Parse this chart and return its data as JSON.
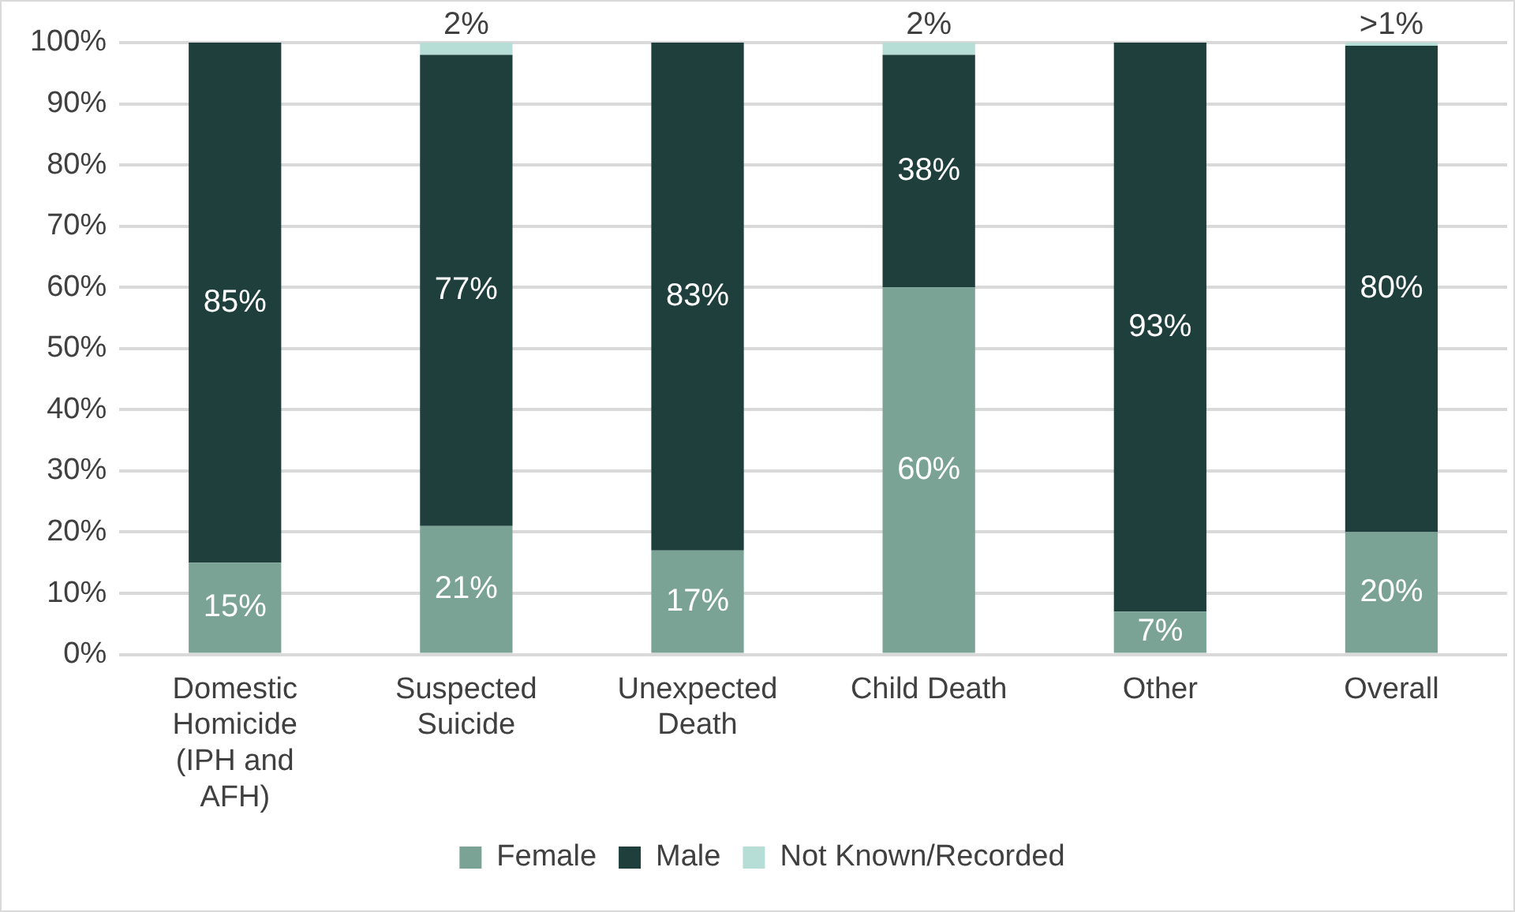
{
  "chart_data": {
    "type": "bar",
    "stacked": true,
    "categories": [
      "Domestic Homicide (IPH and AFH)",
      "Suspected Suicide",
      "Unexpected Death",
      "Child Death",
      "Other",
      "Overall"
    ],
    "series": [
      {
        "name": "Female",
        "color": "#7aa396",
        "values": [
          15,
          21,
          17,
          60,
          7,
          20
        ],
        "value_labels": [
          "15%",
          "21%",
          "17%",
          "60%",
          "7%",
          "20%"
        ]
      },
      {
        "name": "Male",
        "color": "#1e3f3c",
        "values": [
          85,
          77,
          83,
          38,
          93,
          79.5
        ],
        "value_labels": [
          "85%",
          "77%",
          "83%",
          "38%",
          "93%",
          "80%"
        ]
      },
      {
        "name": "Not Known/Recorded",
        "color": "#b6ddd6",
        "values": [
          null,
          2,
          null,
          2,
          null,
          0.5
        ],
        "value_labels": [
          null,
          "2%",
          null,
          "2%",
          null,
          ">1%"
        ]
      }
    ],
    "ylim": [
      0,
      100
    ],
    "yticks": [
      {
        "value": 0,
        "label": "0%"
      },
      {
        "value": 10,
        "label": "10%"
      },
      {
        "value": 20,
        "label": "20%"
      },
      {
        "value": 30,
        "label": "30%"
      },
      {
        "value": 40,
        "label": "40%"
      },
      {
        "value": 50,
        "label": "50%"
      },
      {
        "value": 60,
        "label": "60%"
      },
      {
        "value": 70,
        "label": "70%"
      },
      {
        "value": 80,
        "label": "80%"
      },
      {
        "value": 90,
        "label": "90%"
      },
      {
        "value": 100,
        "label": "100%"
      }
    ],
    "grid": "y",
    "legend": "bottom"
  }
}
